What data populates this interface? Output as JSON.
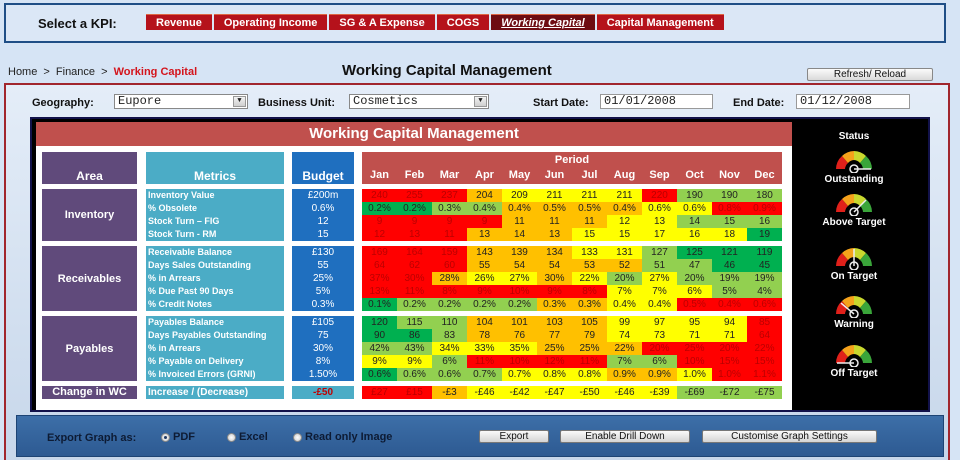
{
  "kpi_bar": {
    "label": "Select a KPI:",
    "tabs": [
      {
        "label": "Revenue",
        "active": false
      },
      {
        "label": "Operating Income",
        "active": false
      },
      {
        "label": "SG & A Expense",
        "active": false
      },
      {
        "label": "COGS",
        "active": false
      },
      {
        "label": "Working Capital",
        "active": true
      },
      {
        "label": "Capital Management",
        "active": false
      }
    ]
  },
  "breadcrumb": {
    "items": [
      "Home",
      "Finance"
    ],
    "current": "Working Capital",
    "separator": ">"
  },
  "page": {
    "title": "Working Capital Management",
    "refresh_label": "Refresh/ Reload"
  },
  "filters": {
    "geography_label": "Geography:",
    "geography_value": "Eupore",
    "business_unit_label": "Business Unit:",
    "business_unit_value": "Cosmetics",
    "start_date_label": "Start Date:",
    "start_date_value": "01/01/2008",
    "end_date_label": "End Date:",
    "end_date_value": "01/12/2008"
  },
  "dashboard": {
    "title": "Working Capital Management",
    "headers": {
      "area": "Area",
      "metrics": "Metrics",
      "budget": "Budget",
      "period": "Period"
    },
    "months": [
      "Jan",
      "Feb",
      "Mar",
      "Apr",
      "May",
      "Jun",
      "Jul",
      "Aug",
      "Sep",
      "Oct",
      "Nov",
      "Dec"
    ],
    "colors": {
      "r": "#ff0000",
      "o": "#ffc000",
      "y": "#ffff00",
      "lg": "#92d050",
      "g": "#00b050"
    },
    "sections": [
      {
        "area": "Inventory",
        "rows": [
          {
            "metric": "Inventory Value",
            "budget": "£200m",
            "values": [
              "240",
              "255",
              "237",
              "204",
              "209",
              "211",
              "211",
              "211",
              "220",
              "190",
              "190",
              "180"
            ],
            "colors": [
              "r",
              "r",
              "r",
              "o",
              "y",
              "y",
              "y",
              "y",
              "r",
              "lg",
              "lg",
              "lg"
            ]
          },
          {
            "metric": "% Obsolete",
            "budget": "0.6%",
            "values": [
              "0.2%",
              "0.2%",
              "0.3%",
              "0.4%",
              "0.4%",
              "0.5%",
              "0.5%",
              "0.4%",
              "0.6%",
              "0.6%",
              "0.8%",
              "0.9%"
            ],
            "colors": [
              "g",
              "g",
              "lg",
              "lg",
              "o",
              "o",
              "o",
              "o",
              "y",
              "y",
              "r",
              "r"
            ]
          },
          {
            "metric": "Stock Turn – FIG",
            "budget": "12",
            "values": [
              "9",
              "9",
              "9",
              "9",
              "11",
              "11",
              "11",
              "12",
              "13",
              "14",
              "15",
              "16"
            ],
            "colors": [
              "r",
              "r",
              "r",
              "r",
              "o",
              "o",
              "o",
              "y",
              "y",
              "lg",
              "lg",
              "lg"
            ]
          },
          {
            "metric": "Stock Turn - RM",
            "budget": "15",
            "values": [
              "12",
              "13",
              "11",
              "13",
              "14",
              "13",
              "15",
              "15",
              "17",
              "16",
              "18",
              "19"
            ],
            "colors": [
              "r",
              "r",
              "r",
              "o",
              "o",
              "o",
              "y",
              "y",
              "y",
              "y",
              "y",
              "g"
            ]
          }
        ]
      },
      {
        "area": "Receivables",
        "rows": [
          {
            "metric": "Receivable Balance",
            "budget": "£130",
            "values": [
              "169",
              "164",
              "159",
              "143",
              "139",
              "134",
              "133",
              "131",
              "127",
              "125",
              "121",
              "119"
            ],
            "colors": [
              "r",
              "r",
              "r",
              "o",
              "o",
              "o",
              "y",
              "y",
              "lg",
              "g",
              "g",
              "g"
            ]
          },
          {
            "metric": "Days Sales Outstanding",
            "budget": "55",
            "values": [
              "64",
              "62",
              "60",
              "55",
              "54",
              "54",
              "53",
              "52",
              "51",
              "47",
              "46",
              "45"
            ],
            "colors": [
              "r",
              "r",
              "r",
              "o",
              "o",
              "o",
              "o",
              "o",
              "lg",
              "lg",
              "g",
              "g"
            ]
          },
          {
            "metric": "% in Arrears",
            "budget": "25%",
            "values": [
              "37%",
              "30%",
              "28%",
              "26%",
              "27%",
              "30%",
              "22%",
              "20%",
              "27%",
              "20%",
              "19%",
              "19%"
            ],
            "colors": [
              "r",
              "r",
              "o",
              "y",
              "y",
              "o",
              "y",
              "lg",
              "y",
              "lg",
              "lg",
              "lg"
            ]
          },
          {
            "metric": "% Due Past 90 Days",
            "budget": "5%",
            "values": [
              "13%",
              "11%",
              "8%",
              "9%",
              "10%",
              "9%",
              "8%",
              "7%",
              "7%",
              "6%",
              "5%",
              "4%"
            ],
            "colors": [
              "r",
              "r",
              "r",
              "r",
              "r",
              "r",
              "r",
              "y",
              "y",
              "y",
              "lg",
              "lg"
            ]
          },
          {
            "metric": "% Credit Notes",
            "budget": "0.3%",
            "values": [
              "0.1%",
              "0.2%",
              "0.2%",
              "0.2%",
              "0.2%",
              "0.3%",
              "0.3%",
              "0.4%",
              "0.4%",
              "0.5%",
              "0.4%",
              "0.6%"
            ],
            "colors": [
              "g",
              "lg",
              "lg",
              "lg",
              "lg",
              "o",
              "o",
              "y",
              "y",
              "r",
              "r",
              "r"
            ]
          }
        ]
      },
      {
        "area": "Payables",
        "rows": [
          {
            "metric": "Payables Balance",
            "budget": "£105",
            "values": [
              "120",
              "115",
              "110",
              "104",
              "101",
              "103",
              "105",
              "99",
              "97",
              "95",
              "94",
              "85"
            ],
            "colors": [
              "g",
              "lg",
              "lg",
              "o",
              "o",
              "o",
              "o",
              "y",
              "y",
              "y",
              "y",
              "r"
            ]
          },
          {
            "metric": "Days Payables Outstanding",
            "budget": "75",
            "values": [
              "90",
              "86",
              "83",
              "78",
              "76",
              "77",
              "79",
              "74",
              "73",
              "71",
              "71",
              "64"
            ],
            "colors": [
              "g",
              "g",
              "lg",
              "o",
              "o",
              "o",
              "o",
              "y",
              "y",
              "y",
              "y",
              "r"
            ]
          },
          {
            "metric": "% in Arrears",
            "budget": "30%",
            "values": [
              "42%",
              "43%",
              "34%",
              "33%",
              "35%",
              "25%",
              "25%",
              "22%",
              "20%",
              "25%",
              "20%",
              "22%"
            ],
            "colors": [
              "lg",
              "lg",
              "y",
              "y",
              "y",
              "o",
              "o",
              "o",
              "r",
              "r",
              "r",
              "r"
            ]
          },
          {
            "metric": "% Payable on Delivery",
            "budget": "8%",
            "values": [
              "9%",
              "9%",
              "6%",
              "11%",
              "10%",
              "12%",
              "11%",
              "7%",
              "6%",
              "10%",
              "15%",
              "15%"
            ],
            "colors": [
              "y",
              "y",
              "lg",
              "r",
              "r",
              "r",
              "r",
              "lg",
              "lg",
              "r",
              "r",
              "r"
            ]
          },
          {
            "metric": "% Invoiced Errors (GRNI)",
            "budget": "1.50%",
            "values": [
              "0.6%",
              "0.6%",
              "0.6%",
              "0.7%",
              "0.7%",
              "0.8%",
              "0.8%",
              "0.9%",
              "0.9%",
              "1.0%",
              "1.0%",
              "1.1%"
            ],
            "colors": [
              "g",
              "lg",
              "lg",
              "lg",
              "y",
              "y",
              "y",
              "o",
              "o",
              "y",
              "r",
              "r"
            ]
          }
        ]
      }
    ],
    "change_in_wc": {
      "area": "Change in WC",
      "metric": "Increase / (Decrease)",
      "budget": "-£50",
      "values": [
        "£27",
        "£15",
        "-£3",
        "-£46",
        "-£42",
        "-£47",
        "-£50",
        "-£46",
        "-£39",
        "-£69",
        "-£72",
        "-£75"
      ],
      "colors": [
        "r",
        "r",
        "o",
        "y",
        "y",
        "y",
        "y",
        "y",
        "y",
        "lg",
        "lg",
        "lg"
      ]
    },
    "status": {
      "title": "Status",
      "items": [
        {
          "label": "Outstanding",
          "needle_angle": 0
        },
        {
          "label": "Above Target",
          "needle_angle": 45
        },
        {
          "label": "On Target",
          "needle_angle": 90
        },
        {
          "label": "Warning",
          "needle_angle": 140
        },
        {
          "label": "Off Target",
          "needle_angle": 180
        }
      ]
    }
  },
  "export": {
    "label": "Export Graph as:",
    "options": [
      {
        "label": "PDF",
        "selected": true
      },
      {
        "label": "Excel",
        "selected": false
      },
      {
        "label": "Read only Image",
        "selected": false
      }
    ],
    "buttons": {
      "export": "Export",
      "drill_down": "Enable Drill Down",
      "customise": "Customise Graph Settings"
    }
  }
}
